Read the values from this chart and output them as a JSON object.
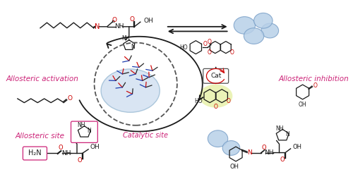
{
  "bg_color": "#ffffff",
  "magenta": "#cc2277",
  "dark": "#1a1a1a",
  "blue_bubble_face": "#b8d0e8",
  "blue_bubble_edge": "#7aa0c8",
  "dashed_circle_color": "#555555",
  "arrow_color": "#1a1a1a",
  "red_atom": "#cc0000",
  "blue_atom": "#1133aa",
  "cat_fill": "#d8e870",
  "labels": {
    "allosteric_activation": "Allosteric activation",
    "allosteric_inhibition": "Allosteric inhibition",
    "catalytic_site": "Catalytic site",
    "allosteric_site": "Allosteric site",
    "cat": "Cat"
  },
  "figsize": [
    5.0,
    2.78
  ],
  "dpi": 100
}
